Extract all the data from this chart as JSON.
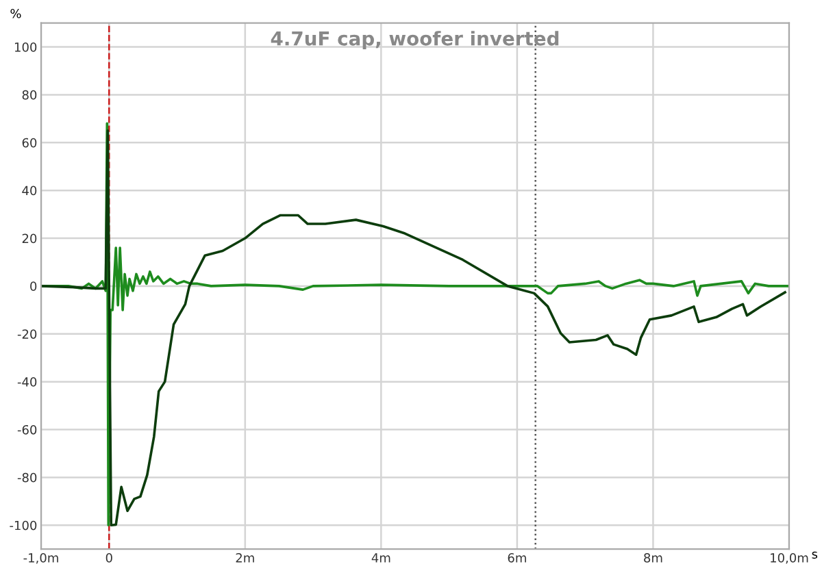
{
  "chart_data": {
    "type": "line",
    "title": "4.7uF cap, woofer inverted",
    "xlabel": "s",
    "ylabel": "%",
    "xlim": [
      -1.0,
      10.0
    ],
    "ylim": [
      -110,
      110
    ],
    "xticks": [
      {
        "value": -1.0,
        "label": "-1,0m"
      },
      0,
      {
        "value": 2,
        "label": "2m"
      },
      {
        "value": 4,
        "label": "4m"
      },
      {
        "value": 6,
        "label": "6m"
      },
      {
        "value": 8,
        "label": "8m"
      },
      {
        "value": 10,
        "label": "10,0m"
      }
    ],
    "yticks": [
      -100,
      -80,
      -60,
      -40,
      -20,
      0,
      20,
      40,
      60,
      80,
      100
    ],
    "grid": true,
    "line_style": "solid",
    "marker": "none",
    "ref_lines": [
      {
        "axis": "x",
        "value": 0,
        "color": "#cc2020",
        "line_style": "dashed"
      },
      {
        "axis": "x",
        "value": 6.27,
        "color": "#555555",
        "line_style": "dotted"
      }
    ],
    "series": [
      {
        "color": "#1e8c1e",
        "x": [
          -1.0,
          -0.6,
          -0.4,
          -0.3,
          -0.2,
          -0.1,
          -0.05,
          -0.03,
          -0.01,
          0.02,
          0.05,
          0.1,
          0.13,
          0.16,
          0.2,
          0.23,
          0.27,
          0.3,
          0.35,
          0.4,
          0.45,
          0.5,
          0.55,
          0.6,
          0.65,
          0.72,
          0.8,
          0.9,
          1.0,
          1.1,
          1.2,
          1.3,
          1.5,
          2.0,
          2.5,
          2.85,
          3.0,
          4.0,
          5.0,
          6.0,
          6.3,
          6.45,
          6.5,
          6.6,
          7.0,
          7.2,
          7.3,
          7.4,
          7.6,
          7.8,
          7.9,
          8.0,
          8.3,
          8.6,
          8.65,
          8.7,
          9.0,
          9.3,
          9.4,
          9.5,
          9.7,
          10.0
        ],
        "values": [
          0,
          0,
          -1,
          1,
          -1,
          2,
          -2,
          68,
          -100,
          -10,
          -10,
          16,
          -8,
          16,
          -10,
          5,
          -4,
          3,
          -2,
          5,
          1,
          4,
          1,
          6,
          2,
          4,
          1,
          3,
          1,
          2,
          1,
          1,
          0,
          0.5,
          0,
          -1.5,
          0,
          0.5,
          0,
          0,
          0,
          -3,
          -3,
          0,
          1,
          2,
          0,
          -1,
          1,
          2.5,
          1,
          1,
          0,
          2,
          -4,
          0,
          1,
          2,
          -3,
          1,
          0,
          0
        ]
      },
      {
        "color": "#0d3d0d",
        "x": [
          -1.0,
          -0.5,
          -0.2,
          -0.05,
          -0.02,
          0.03,
          0.1,
          0.18,
          0.27,
          0.37,
          0.46,
          0.56,
          0.66,
          0.73,
          0.82,
          0.95,
          1.12,
          1.18,
          1.41,
          1.67,
          2.0,
          2.26,
          2.52,
          2.78,
          2.92,
          3.18,
          3.63,
          4.03,
          4.35,
          5.2,
          5.86,
          6.25,
          6.45,
          6.64,
          6.77,
          7.16,
          7.33,
          7.42,
          7.62,
          7.75,
          7.82,
          7.95,
          8.27,
          8.6,
          8.67,
          8.93,
          9.16,
          9.32,
          9.38,
          9.58,
          9.94
        ],
        "values": [
          0,
          -0.5,
          -1,
          -1,
          65,
          -100,
          -99.8,
          -84,
          -94,
          -89,
          -88,
          -79,
          -63,
          -44,
          -40,
          -16,
          -7.6,
          0,
          12.8,
          14.7,
          20,
          26,
          29.6,
          29.6,
          26,
          26,
          27.7,
          25,
          22,
          11,
          0,
          -3,
          -8.5,
          -19.7,
          -23.5,
          -22.5,
          -20.6,
          -24.4,
          -26.3,
          -28.7,
          -21.6,
          -14,
          -12.3,
          -8.6,
          -15,
          -13,
          -9.5,
          -7.6,
          -12.3,
          -8.6,
          -2.6
        ]
      }
    ]
  }
}
